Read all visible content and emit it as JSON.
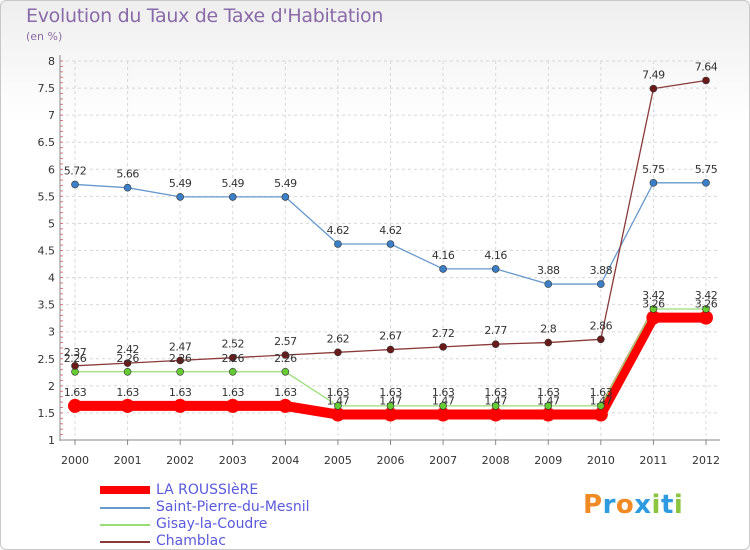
{
  "title": "Evolution du Taux de Taxe d'Habitation",
  "subtitle": "(en %)",
  "chart_data": {
    "type": "line",
    "x": [
      "2000",
      "2001",
      "2002",
      "2003",
      "2004",
      "2005",
      "2006",
      "2007",
      "2008",
      "2009",
      "2010",
      "2011",
      "2012"
    ],
    "ylim": [
      1,
      8
    ],
    "yticks": [
      "1",
      "1.5",
      "2",
      "2.5",
      "3",
      "3.5",
      "4",
      "4.5",
      "5",
      "5.5",
      "6",
      "6.5",
      "7",
      "7.5",
      "8"
    ],
    "legend_position": "bottom-left",
    "series": [
      {
        "name": "LA ROUSSIèRE",
        "color": "#ff0000",
        "marker": "#ff0000",
        "values": [
          1.63,
          1.63,
          1.63,
          1.63,
          1.63,
          1.47,
          1.47,
          1.47,
          1.47,
          1.47,
          1.47,
          3.26,
          3.26
        ],
        "labels": [
          "1.63",
          "1.63",
          "1.63",
          "1.63",
          "1.63",
          "1.47",
          "1.47",
          "1.47",
          "1.47",
          "1.47",
          "1.47",
          "3.26",
          "3.26"
        ]
      },
      {
        "name": "Saint-Pierre-du-Mesnil",
        "color": "#6699cc",
        "marker": "#3a7fc8",
        "values": [
          5.72,
          5.66,
          5.49,
          5.49,
          5.49,
          4.62,
          4.62,
          4.16,
          4.16,
          3.88,
          3.88,
          5.75,
          5.75
        ],
        "labels": [
          "5.72",
          "5.66",
          "5.49",
          "5.49",
          "5.49",
          "4.62",
          "4.62",
          "4.16",
          "4.16",
          "3.88",
          "3.88",
          "5.75",
          "5.75"
        ]
      },
      {
        "name": "Gisay-la-Coudre",
        "color": "#99dd77",
        "marker": "#66cc33",
        "values": [
          2.26,
          2.26,
          2.26,
          2.26,
          2.26,
          1.63,
          1.63,
          1.63,
          1.63,
          1.63,
          1.63,
          3.42,
          3.42
        ],
        "labels": [
          "2.26",
          "2.26",
          "2.26",
          "2.26",
          "2.26",
          "1.63",
          "1.63",
          "1.63",
          "1.63",
          "1.63",
          "1.63",
          "3.42",
          "3.42"
        ]
      },
      {
        "name": "Chamblac",
        "color": "#8b3a3a",
        "marker": "#6b1a1a",
        "values": [
          2.37,
          2.42,
          2.47,
          2.52,
          2.57,
          2.62,
          2.67,
          2.72,
          2.77,
          2.8,
          2.86,
          7.49,
          7.64
        ],
        "labels": [
          "2.37",
          "2.42",
          "2.47",
          "2.52",
          "2.57",
          "2.62",
          "2.67",
          "2.72",
          "2.77",
          "2.8",
          "2.86",
          "7.49",
          "7.64"
        ]
      }
    ]
  },
  "logo": {
    "text": "Proxiti",
    "colors": [
      "#f08a24",
      "#2e9be0",
      "#f08a24",
      "#2e9be0",
      "#8bc53f",
      "#2e9be0",
      "#8bc53f"
    ]
  }
}
